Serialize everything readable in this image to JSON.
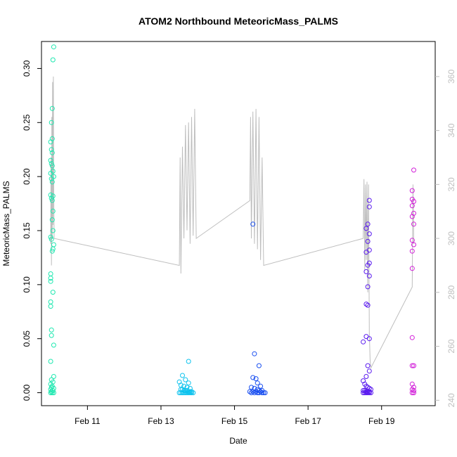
{
  "chart_data": {
    "type": "scatter",
    "title": "ATOM2 Northbound MeteoricMass_PALMS",
    "xlabel": "Date",
    "ylabel": "MeteoricMass_PALMS",
    "xlim": [
      "2017-02-09T18:00",
      "2017-02-20T11:00"
    ],
    "ylim": [
      -0.012,
      0.325
    ],
    "y_ticks": [
      0.0,
      0.05,
      0.1,
      0.15,
      0.2,
      0.25,
      0.3
    ],
    "y_tick_labels": [
      "0.00",
      "0.05",
      "0.10",
      "0.15",
      "0.20",
      "0.25",
      "0.30"
    ],
    "x_ticks": [
      "2017-02-11",
      "2017-02-13",
      "2017-02-15",
      "2017-02-17",
      "2017-02-19"
    ],
    "x_tick_labels": [
      "Feb 11",
      "Feb 13",
      "Feb 15",
      "Feb 17",
      "Feb 19"
    ],
    "y2lim": [
      238,
      373
    ],
    "y2_ticks": [
      240,
      260,
      280,
      300,
      320,
      340,
      360
    ],
    "y2_tick_labels": [
      "240",
      "260",
      "280",
      "300",
      "320",
      "340",
      "360"
    ],
    "grid": false,
    "legend": "none",
    "colors": {
      "line": "#bebebe",
      "axis": "#000000",
      "right_axis": "#bebebe"
    },
    "series": [
      {
        "color": "#1ee8b0",
        "points": [
          [
            "2017-02-10T02:00",
            0.32
          ],
          [
            "2017-02-10T01:30",
            0.308
          ],
          [
            "2017-02-10T01:00",
            0.263
          ],
          [
            "2017-02-10T00:30",
            0.25
          ],
          [
            "2017-02-10T01:00",
            0.235
          ],
          [
            "2017-02-10T00:00",
            0.232
          ],
          [
            "2017-02-10T00:30",
            0.225
          ],
          [
            "2017-02-10T01:00",
            0.222
          ],
          [
            "2017-02-10T00:00",
            0.215
          ],
          [
            "2017-02-10T00:30",
            0.212
          ],
          [
            "2017-02-10T01:00",
            0.21
          ],
          [
            "2017-02-10T01:30",
            0.205
          ],
          [
            "2017-02-10T00:00",
            0.203
          ],
          [
            "2017-02-10T02:00",
            0.2
          ],
          [
            "2017-02-10T00:30",
            0.198
          ],
          [
            "2017-02-10T01:00",
            0.195
          ],
          [
            "2017-02-10T00:00",
            0.183
          ],
          [
            "2017-02-10T00:30",
            0.18
          ],
          [
            "2017-02-10T01:30",
            0.182
          ],
          [
            "2017-02-10T01:00",
            0.178
          ],
          [
            "2017-02-10T01:30",
            0.168
          ],
          [
            "2017-02-10T01:00",
            0.16
          ],
          [
            "2017-02-10T01:30",
            0.15
          ],
          [
            "2017-02-10T00:00",
            0.144
          ],
          [
            "2017-02-10T00:30",
            0.142
          ],
          [
            "2017-02-10T02:00",
            0.137
          ],
          [
            "2017-02-10T01:30",
            0.133
          ],
          [
            "2017-02-10T01:00",
            0.131
          ],
          [
            "2017-02-10T00:00",
            0.11
          ],
          [
            "2017-02-10T00:00",
            0.106
          ],
          [
            "2017-02-10T00:00",
            0.103
          ],
          [
            "2017-02-10T01:30",
            0.093
          ],
          [
            "2017-02-10T00:00",
            0.084
          ],
          [
            "2017-02-10T00:00",
            0.08
          ],
          [
            "2017-02-10T00:30",
            0.058
          ],
          [
            "2017-02-10T00:30",
            0.053
          ],
          [
            "2017-02-10T02:00",
            0.044
          ],
          [
            "2017-02-10T00:00",
            0.029
          ],
          [
            "2017-02-10T02:00",
            0.015
          ],
          [
            "2017-02-10T00:30",
            0.012
          ],
          [
            "2017-02-10T01:30",
            0.01
          ],
          [
            "2017-02-10T00:00",
            0.008
          ],
          [
            "2017-02-10T01:00",
            0.006
          ],
          [
            "2017-02-10T00:30",
            0.005
          ],
          [
            "2017-02-10T02:00",
            0.004
          ],
          [
            "2017-02-10T00:00",
            0.003
          ],
          [
            "2017-02-10T01:30",
            0.002
          ],
          [
            "2017-02-10T00:30",
            0.001
          ],
          [
            "2017-02-10T01:00",
            0.0
          ],
          [
            "2017-02-10T02:00",
            0.0
          ],
          [
            "2017-02-10T00:00",
            0.0
          ]
        ]
      },
      {
        "color": "#0ec3ee",
        "points": [
          [
            "2017-02-13T18:00",
            0.029
          ],
          [
            "2017-02-13T14:00",
            0.016
          ],
          [
            "2017-02-13T16:00",
            0.012
          ],
          [
            "2017-02-13T12:00",
            0.01
          ],
          [
            "2017-02-13T18:00",
            0.009
          ],
          [
            "2017-02-13T13:00",
            0.007
          ],
          [
            "2017-02-13T15:00",
            0.006
          ],
          [
            "2017-02-13T17:00",
            0.005
          ],
          [
            "2017-02-13T19:00",
            0.004
          ],
          [
            "2017-02-13T13:00",
            0.003
          ],
          [
            "2017-02-13T14:00",
            0.003
          ],
          [
            "2017-02-13T15:00",
            0.002
          ],
          [
            "2017-02-13T16:00",
            0.002
          ],
          [
            "2017-02-13T17:00",
            0.002
          ],
          [
            "2017-02-13T18:00",
            0.001
          ],
          [
            "2017-02-13T19:00",
            0.001
          ],
          [
            "2017-02-13T20:00",
            0.001
          ],
          [
            "2017-02-13T12:00",
            0.0
          ],
          [
            "2017-02-13T13:00",
            0.0
          ],
          [
            "2017-02-13T14:00",
            0.0
          ],
          [
            "2017-02-13T15:00",
            0.0
          ],
          [
            "2017-02-13T16:00",
            0.0
          ],
          [
            "2017-02-13T17:00",
            0.0
          ],
          [
            "2017-02-13T18:00",
            0.0
          ],
          [
            "2017-02-13T19:00",
            0.0
          ],
          [
            "2017-02-13T20:00",
            0.0
          ],
          [
            "2017-02-13T21:00",
            0.0
          ]
        ]
      },
      {
        "color": "#1a4ff0",
        "points": [
          [
            "2017-02-15T12:00",
            0.156
          ],
          [
            "2017-02-15T13:00",
            0.036
          ],
          [
            "2017-02-15T16:00",
            0.025
          ],
          [
            "2017-02-15T12:00",
            0.014
          ],
          [
            "2017-02-15T14:00",
            0.013
          ],
          [
            "2017-02-15T15:00",
            0.009
          ],
          [
            "2017-02-15T17:00",
            0.006
          ],
          [
            "2017-02-15T11:00",
            0.005
          ],
          [
            "2017-02-15T13:00",
            0.004
          ],
          [
            "2017-02-15T15:00",
            0.003
          ],
          [
            "2017-02-15T16:00",
            0.002
          ],
          [
            "2017-02-15T18:00",
            0.002
          ],
          [
            "2017-02-15T10:00",
            0.001
          ],
          [
            "2017-02-15T12:00",
            0.001
          ],
          [
            "2017-02-15T14:00",
            0.001
          ],
          [
            "2017-02-15T17:00",
            0.001
          ],
          [
            "2017-02-15T19:00",
            0.0
          ],
          [
            "2017-02-15T11:00",
            0.0
          ],
          [
            "2017-02-15T13:00",
            0.0
          ],
          [
            "2017-02-15T15:00",
            0.0
          ],
          [
            "2017-02-15T16:00",
            0.0
          ],
          [
            "2017-02-15T18:00",
            0.0
          ],
          [
            "2017-02-15T20:00",
            0.0
          ]
        ]
      },
      {
        "color": "#5a1aef",
        "points": [
          [
            "2017-02-18T12:00",
            0.047
          ],
          [
            "2017-02-18T15:00",
            0.156
          ],
          [
            "2017-02-18T14:00",
            0.152
          ],
          [
            "2017-02-18T16:00",
            0.147
          ],
          [
            "2017-02-18T15:00",
            0.14
          ],
          [
            "2017-02-18T16:00",
            0.132
          ],
          [
            "2017-02-18T14:00",
            0.13
          ],
          [
            "2017-02-18T16:00",
            0.12
          ],
          [
            "2017-02-18T15:00",
            0.118
          ],
          [
            "2017-02-18T14:00",
            0.112
          ],
          [
            "2017-02-18T16:00",
            0.108
          ],
          [
            "2017-02-18T15:00",
            0.098
          ],
          [
            "2017-02-18T14:00",
            0.082
          ],
          [
            "2017-02-18T15:00",
            0.081
          ],
          [
            "2017-02-18T14:00",
            0.052
          ],
          [
            "2017-02-18T16:00",
            0.05
          ],
          [
            "2017-02-18T16:00",
            0.178
          ],
          [
            "2017-02-18T16:00",
            0.172
          ],
          [
            "2017-02-18T15:00",
            0.025
          ],
          [
            "2017-02-18T16:00",
            0.02
          ],
          [
            "2017-02-18T14:00",
            0.015
          ],
          [
            "2017-02-18T12:00",
            0.011
          ],
          [
            "2017-02-18T13:00",
            0.008
          ],
          [
            "2017-02-18T14:00",
            0.006
          ],
          [
            "2017-02-18T15:00",
            0.005
          ],
          [
            "2017-02-18T16:00",
            0.004
          ],
          [
            "2017-02-18T17:00",
            0.003
          ],
          [
            "2017-02-18T12:00",
            0.002
          ],
          [
            "2017-02-18T13:00",
            0.002
          ],
          [
            "2017-02-18T14:00",
            0.001
          ],
          [
            "2017-02-18T15:00",
            0.001
          ],
          [
            "2017-02-18T16:00",
            0.001
          ],
          [
            "2017-02-18T17:00",
            0.0
          ],
          [
            "2017-02-18T12:00",
            0.0
          ],
          [
            "2017-02-18T13:00",
            0.0
          ],
          [
            "2017-02-18T14:00",
            0.0
          ],
          [
            "2017-02-18T15:00",
            0.0
          ],
          [
            "2017-02-18T16:00",
            0.0
          ]
        ]
      },
      {
        "color": "#d21ed9",
        "points": [
          [
            "2017-02-19T21:00",
            0.206
          ],
          [
            "2017-02-19T20:00",
            0.187
          ],
          [
            "2017-02-19T20:00",
            0.179
          ],
          [
            "2017-02-19T21:00",
            0.177
          ],
          [
            "2017-02-19T20:00",
            0.173
          ],
          [
            "2017-02-19T21:00",
            0.166
          ],
          [
            "2017-02-19T20:00",
            0.163
          ],
          [
            "2017-02-19T21:00",
            0.156
          ],
          [
            "2017-02-19T20:00",
            0.141
          ],
          [
            "2017-02-19T21:00",
            0.137
          ],
          [
            "2017-02-19T20:00",
            0.131
          ],
          [
            "2017-02-19T20:00",
            0.115
          ],
          [
            "2017-02-19T20:00",
            0.051
          ],
          [
            "2017-02-19T20:00",
            0.025
          ],
          [
            "2017-02-19T21:00",
            0.025
          ],
          [
            "2017-02-19T20:00",
            0.008
          ],
          [
            "2017-02-19T21:00",
            0.005
          ],
          [
            "2017-02-19T20:00",
            0.003
          ],
          [
            "2017-02-19T21:00",
            0.002
          ],
          [
            "2017-02-19T20:00",
            0.0
          ],
          [
            "2017-02-19T21:00",
            0.0
          ]
        ]
      }
    ],
    "line_y2": {
      "color": "#bebebe",
      "points": [
        [
          "2017-02-10T00:00",
          298
        ],
        [
          "2017-02-10T00:15",
          330
        ],
        [
          "2017-02-10T00:30",
          290
        ],
        [
          "2017-02-10T00:45",
          345
        ],
        [
          "2017-02-10T01:00",
          300
        ],
        [
          "2017-02-10T01:15",
          358
        ],
        [
          "2017-02-10T01:30",
          305
        ],
        [
          "2017-02-10T01:45",
          360
        ],
        [
          "2017-02-10T02:00",
          318
        ],
        [
          "2017-02-10T02:15",
          300
        ],
        [
          "2017-02-13T12:00",
          290
        ],
        [
          "2017-02-13T12:30",
          330
        ],
        [
          "2017-02-13T13:00",
          287
        ],
        [
          "2017-02-13T14:00",
          334
        ],
        [
          "2017-02-13T15:00",
          300
        ],
        [
          "2017-02-13T16:00",
          342
        ],
        [
          "2017-02-13T17:00",
          303
        ],
        [
          "2017-02-13T18:00",
          343
        ],
        [
          "2017-02-13T19:00",
          298
        ],
        [
          "2017-02-13T20:00",
          345
        ],
        [
          "2017-02-13T21:00",
          301
        ],
        [
          "2017-02-13T22:00",
          348
        ],
        [
          "2017-02-13T23:00",
          300
        ],
        [
          "2017-02-15T10:00",
          314
        ],
        [
          "2017-02-15T10:30",
          345
        ],
        [
          "2017-02-15T11:00",
          300
        ],
        [
          "2017-02-15T12:00",
          347
        ],
        [
          "2017-02-15T13:00",
          298
        ],
        [
          "2017-02-15T14:00",
          348
        ],
        [
          "2017-02-15T15:00",
          296
        ],
        [
          "2017-02-15T16:00",
          345
        ],
        [
          "2017-02-15T17:00",
          292
        ],
        [
          "2017-02-15T18:00",
          330
        ],
        [
          "2017-02-15T19:00",
          290
        ],
        [
          "2017-02-18T12:00",
          300
        ],
        [
          "2017-02-18T12:30",
          322
        ],
        [
          "2017-02-18T13:00",
          288
        ],
        [
          "2017-02-18T13:30",
          320
        ],
        [
          "2017-02-18T14:00",
          292
        ],
        [
          "2017-02-18T14:30",
          321
        ],
        [
          "2017-02-18T15:00",
          280
        ],
        [
          "2017-02-18T15:30",
          320
        ],
        [
          "2017-02-18T16:00",
          265
        ],
        [
          "2017-02-18T16:30",
          255
        ],
        [
          "2017-02-18T17:00",
          252
        ],
        [
          "2017-02-19T20:00",
          282
        ],
        [
          "2017-02-19T20:30",
          320
        ],
        [
          "2017-02-19T21:00",
          298
        ]
      ]
    }
  }
}
